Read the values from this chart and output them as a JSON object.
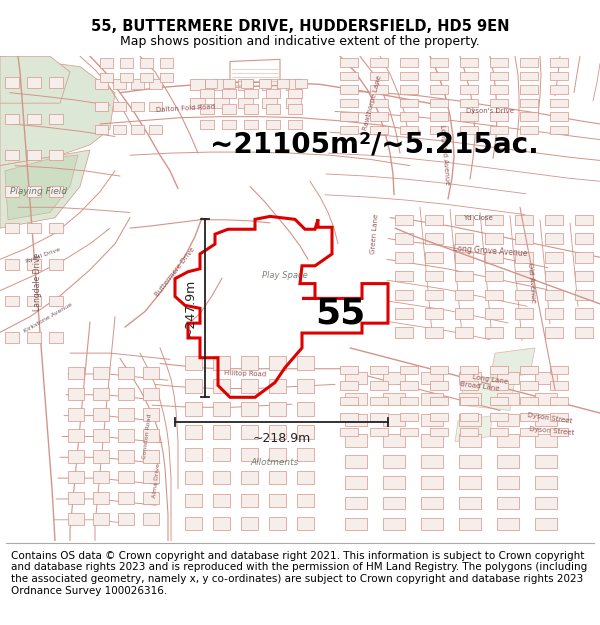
{
  "title_line1": "55, BUTTERMERE DRIVE, HUDDERSFIELD, HD5 9EN",
  "title_line2": "Map shows position and indicative extent of the property.",
  "area_text": "~21105m²/~5.215ac.",
  "label_55": "55",
  "dim_horizontal": "~218.9m",
  "dim_vertical": "~247.9m",
  "footer_text": "Contains OS data © Crown copyright and database right 2021. This information is subject to Crown copyright and database rights 2023 and is reproduced with the permission of HM Land Registry. The polygons (including the associated geometry, namely x, y co-ordinates) are subject to Crown copyright and database rights 2023 Ordnance Survey 100026316.",
  "map_bg": "#f8f5f2",
  "road_color": "#d4948a",
  "building_edge": "#d4948a",
  "building_fill": "#f5eeea",
  "property_outline_color": "#dd0000",
  "green_color": "#dce8d5",
  "green_dark": "#c8dbbf",
  "gray_road": "#c8c4be",
  "title_fontsize": 10.5,
  "subtitle_fontsize": 9,
  "area_fontsize": 20,
  "label_fontsize": 26,
  "dim_fontsize": 9,
  "footer_fontsize": 7.5,
  "map_label_fontsize": 6.5
}
